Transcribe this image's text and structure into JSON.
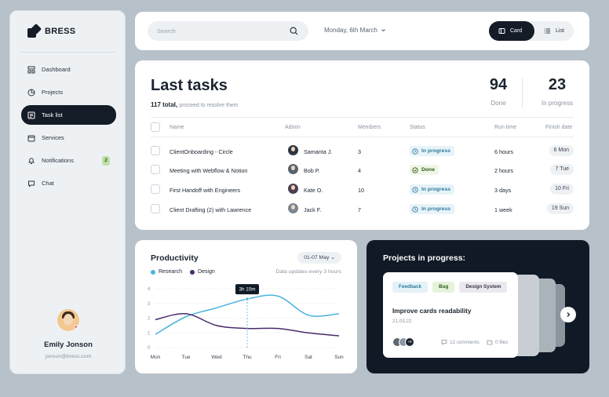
{
  "brand": {
    "name": "BRESS"
  },
  "sidebar": {
    "items": [
      {
        "label": "Dashboard",
        "icon": "dashboard-icon",
        "active": false
      },
      {
        "label": "Projects",
        "icon": "pie-chart-icon",
        "active": false
      },
      {
        "label": "Task list",
        "icon": "task-list-icon",
        "active": true
      },
      {
        "label": "Services",
        "icon": "box-icon",
        "active": false
      },
      {
        "label": "Notifications",
        "icon": "bell-icon",
        "active": false,
        "badge": "2"
      },
      {
        "label": "Chat",
        "icon": "chat-icon",
        "active": false
      }
    ],
    "profile": {
      "name": "Emily Jonson",
      "email": "jonson@bress.com"
    }
  },
  "topbar": {
    "search_placeholder": "Search",
    "date": "Monday, 6th March",
    "view_card": "Card",
    "view_list": "List",
    "active_view": "Card"
  },
  "tasks": {
    "title": "Last tasks",
    "total": "117 total,",
    "total_note": "proceed to resolve them",
    "done_count": "94",
    "done_label": "Done",
    "progress_count": "23",
    "progress_label": "In progress",
    "columns": [
      "Name",
      "Admin",
      "Members",
      "Status",
      "Run time",
      "Finish date"
    ],
    "rows": [
      {
        "name": "ClientOnboarding - Circle",
        "admin": "Samanta J.",
        "members": "3",
        "status": "In progress",
        "run_time": "6 hours",
        "finish": "6 Mon"
      },
      {
        "name": "Meeting with Webflow & Notion",
        "admin": "Bob P.",
        "members": "4",
        "status": "Done",
        "run_time": "2 hours",
        "finish": "7 Tue"
      },
      {
        "name": "First Handoff with Engineers",
        "admin": "Kate O.",
        "members": "10",
        "status": "In progress",
        "run_time": "3 days",
        "finish": "10 Fri"
      },
      {
        "name": "Client Drafting (2) with Lawrence",
        "admin": "Jack F.",
        "members": "7",
        "status": "In progress",
        "run_time": "1 week",
        "finish": "19 Sun"
      }
    ]
  },
  "productivity": {
    "title": "Productivity",
    "range": "01-07 May",
    "update_note": "Data updates every 3 hours",
    "tooltip": "3h 10m",
    "colors": {
      "research": "#4bb4dd",
      "design": "#4a2a6b"
    }
  },
  "chart_data": {
    "type": "line",
    "categories": [
      "Mon",
      "Tue",
      "Wed",
      "Thu",
      "Fri",
      "Sat",
      "Sun"
    ],
    "y_ticks": [
      "0",
      "1",
      "2",
      "3",
      "4"
    ],
    "ylim": [
      0,
      4
    ],
    "series": [
      {
        "name": "Research",
        "values": [
          0.9,
          2.1,
          2.7,
          3.3,
          3.5,
          2.2,
          2.3
        ]
      },
      {
        "name": "Design",
        "values": [
          1.9,
          2.3,
          1.5,
          1.3,
          1.3,
          1.0,
          0.8
        ]
      }
    ],
    "grid": true
  },
  "projects": {
    "title": "Projects in progress:",
    "card": {
      "tags": [
        {
          "label": "Feedback",
          "bg": "#e4f2f8",
          "fg": "#2c7ba0"
        },
        {
          "label": "Bug",
          "bg": "#e6f3dc",
          "fg": "#2f5a18"
        },
        {
          "label": "Design System",
          "bg": "#ebe8ef",
          "fg": "#3a3448"
        }
      ],
      "title": "Improve cards readability",
      "date": "21.03.22",
      "more_members": "+8",
      "comments": "12 comments",
      "files": "0 files"
    }
  }
}
